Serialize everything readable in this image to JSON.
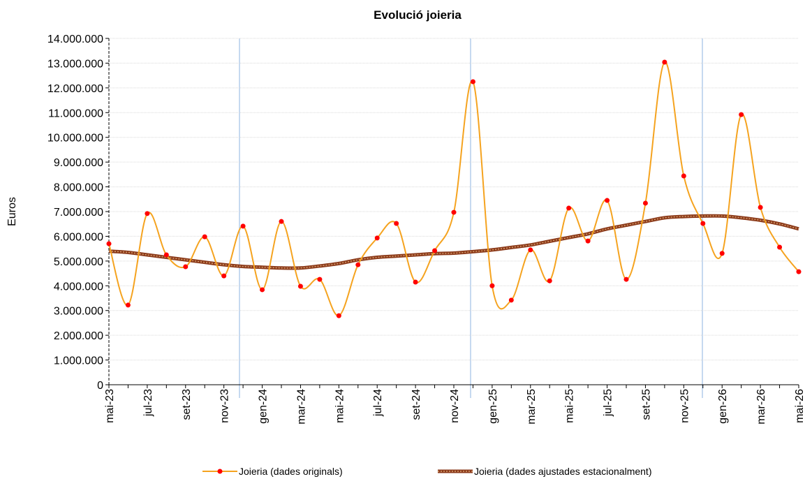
{
  "chart_data": {
    "type": "line",
    "title": "Evolució joieria",
    "y_label": "Euros",
    "categories": [
      "mai-23",
      null,
      "jul-23",
      null,
      "set-23",
      null,
      "nov-23",
      null,
      "gen-24",
      null,
      "mar-24",
      null,
      "mai-24",
      null,
      "jul-24",
      null,
      "set-24",
      null,
      "nov-24",
      null,
      "gen-25",
      null,
      "mar-25",
      null,
      "mai-25",
      null,
      "jul-25",
      null,
      "set-25",
      null,
      "nov-25",
      null,
      "gen-26",
      null,
      "mar-26",
      null,
      "mai-26"
    ],
    "series": [
      {
        "name": "Joieria (dades originals)",
        "color": "#f5a31f",
        "marker_color": "#ff0000",
        "values": [
          5700000,
          3220000,
          6920000,
          5250000,
          4770000,
          5980000,
          4400000,
          6410000,
          3840000,
          6600000,
          3980000,
          4260000,
          2790000,
          4850000,
          5930000,
          6520000,
          4150000,
          5420000,
          6970000,
          12250000,
          4000000,
          3420000,
          5450000,
          4200000,
          7140000,
          5810000,
          7450000,
          4260000,
          7340000,
          13040000,
          8440000,
          6520000,
          5310000,
          10920000,
          7170000,
          5560000,
          4570000
        ]
      },
      {
        "name": "Joieria (dades ajustades estacionalment)",
        "color": "#8b3a1a",
        "values": [
          5400000,
          5350000,
          5250000,
          5150000,
          5050000,
          4950000,
          4850000,
          4780000,
          4750000,
          4720000,
          4720000,
          4800000,
          4900000,
          5050000,
          5150000,
          5200000,
          5250000,
          5300000,
          5320000,
          5380000,
          5450000,
          5550000,
          5650000,
          5800000,
          5950000,
          6100000,
          6300000,
          6450000,
          6600000,
          6750000,
          6800000,
          6820000,
          6820000,
          6750000,
          6650000,
          6500000,
          6300000
        ]
      }
    ],
    "ylim": [
      0,
      14000000
    ],
    "yticks": [
      0,
      {
        "value": 1000000,
        "label": "1.000.000"
      },
      {
        "value": 2000000,
        "label": "2.000.000"
      },
      {
        "value": 3000000,
        "label": "3.000.000"
      },
      {
        "value": 4000000,
        "label": "4.000.000"
      },
      {
        "value": 5000000,
        "label": "5.000.000"
      },
      {
        "value": 6000000,
        "label": "6.000.000"
      },
      {
        "value": 7000000,
        "label": "7.000.000"
      },
      {
        "value": 8000000,
        "label": "8.000.000"
      },
      {
        "value": 9000000,
        "label": "9.000.000"
      },
      {
        "value": 10000000,
        "label": "10.000.000"
      },
      {
        "value": 11000000,
        "label": "11.000.000"
      },
      {
        "value": 12000000,
        "label": "12.000.000"
      },
      {
        "value": 13000000,
        "label": "13.000.000"
      },
      {
        "value": 14000000,
        "label": "14.000.000"
      }
    ],
    "grid": true,
    "legend": "bottom"
  }
}
